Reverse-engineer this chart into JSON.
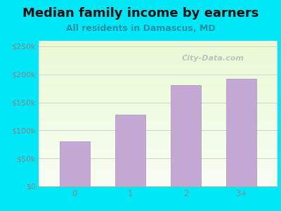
{
  "title": "Median family income by earners",
  "subtitle": "All residents in Damascus, MD",
  "categories": [
    "0",
    "1",
    "2",
    "3+"
  ],
  "values": [
    80000,
    128000,
    181000,
    192000
  ],
  "bar_color": "#c4a8d4",
  "bar_edge_color": "#b090c0",
  "ylim": [
    0,
    260000
  ],
  "yticks": [
    0,
    50000,
    100000,
    150000,
    200000,
    250000
  ],
  "ytick_labels": [
    "$0",
    "$50k",
    "$100k",
    "$150k",
    "$200k",
    "$250k"
  ],
  "background_outer": "#00e8f8",
  "title_fontsize": 13,
  "subtitle_fontsize": 9,
  "watermark": "City-Data.com",
  "grid_color": "#cccccc",
  "tick_color": "#888888",
  "subtitle_color": "#2090a8",
  "title_color": "#111111"
}
